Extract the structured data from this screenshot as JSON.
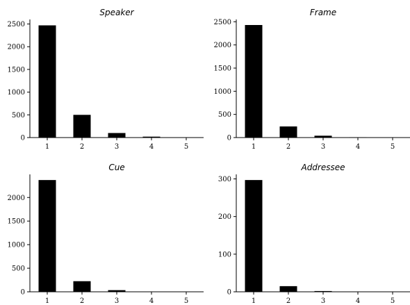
{
  "chart_data": [
    {
      "type": "bar",
      "title": "Speaker",
      "categories": [
        "1",
        "2",
        "3",
        "4",
        "5"
      ],
      "values": [
        2470,
        500,
        100,
        20,
        5
      ],
      "ylim": [
        0,
        2600
      ],
      "yticks": [
        0,
        500,
        1000,
        1500,
        2000,
        2500
      ],
      "xlabel": "",
      "ylabel": "",
      "grid": false,
      "legend": null
    },
    {
      "type": "bar",
      "title": "Frame",
      "categories": [
        "1",
        "2",
        "3",
        "4",
        "5"
      ],
      "values": [
        2430,
        240,
        40,
        8,
        3
      ],
      "ylim": [
        0,
        2550
      ],
      "yticks": [
        0,
        500,
        1000,
        1500,
        2000,
        2500
      ],
      "xlabel": "",
      "ylabel": "",
      "grid": false,
      "legend": null
    },
    {
      "type": "bar",
      "title": "Cue",
      "categories": [
        "1",
        "2",
        "3",
        "4",
        "5"
      ],
      "values": [
        2370,
        225,
        35,
        6,
        2
      ],
      "ylim": [
        0,
        2490
      ],
      "yticks": [
        0,
        500,
        1000,
        1500,
        2000
      ],
      "xlabel": "",
      "ylabel": "",
      "grid": false,
      "legend": null
    },
    {
      "type": "bar",
      "title": "Addressee",
      "categories": [
        "1",
        "2",
        "3",
        "4",
        "5"
      ],
      "values": [
        297,
        15,
        2,
        0.5,
        0.3
      ],
      "ylim": [
        0,
        312
      ],
      "yticks": [
        0,
        100,
        200,
        300
      ],
      "xlabel": "",
      "ylabel": "",
      "grid": false,
      "legend": null
    }
  ]
}
